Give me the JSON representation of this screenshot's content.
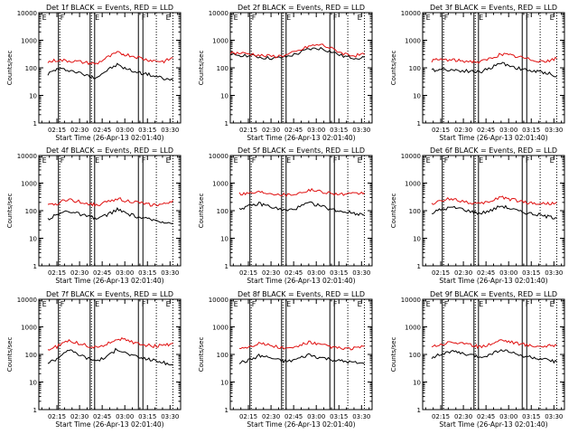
{
  "figure": {
    "x_ticks": [
      "02:15",
      "02:30",
      "02:45",
      "03:00",
      "03:15",
      "03:30"
    ],
    "y_ticks": [
      "1",
      "10",
      "100",
      "1000",
      "10000"
    ],
    "y_label": "Counts/sec",
    "x_label": "Start Time (26-Apr-13 02:01:40)",
    "colors": {
      "events": "#000000",
      "lld": "#e01010"
    }
  },
  "chart_data": [
    {
      "type": "line",
      "title": "Det 1f BLACK = Events, RED = LLD",
      "detector": "1f",
      "xlabel": "Start Time (26-Apr-13 02:01:40)",
      "ylabel": "Counts/sec",
      "xlim": [
        "02:03",
        "03:37"
      ],
      "ylim": [
        1,
        10000
      ],
      "yscale": "log",
      "x": [
        "02:09",
        "02:15",
        "02:22",
        "02:28",
        "02:36",
        "02:41",
        "02:48",
        "02:55",
        "03:01",
        "03:08",
        "03:14",
        "03:20",
        "03:26",
        "03:32"
      ],
      "series": [
        {
          "name": "Events",
          "color": "#000000",
          "values": [
            60,
            90,
            85,
            70,
            50,
            45,
            80,
            130,
            90,
            70,
            60,
            50,
            40,
            35
          ]
        },
        {
          "name": "LLD",
          "color": "#e01010",
          "values": [
            160,
            190,
            180,
            170,
            150,
            140,
            230,
            350,
            300,
            250,
            200,
            180,
            170,
            230
          ]
        }
      ],
      "markers": {
        "solid": [
          "02:16",
          "02:37",
          "02:40",
          "03:09",
          "03:12"
        ],
        "dotted": [
          "02:16",
          "02:37",
          "03:20",
          "03:31"
        ],
        "letters": [
          "E",
          "F",
          "E",
          "F",
          "E"
        ]
      }
    },
    {
      "type": "line",
      "title": "Det 2f BLACK = Events, RED = LLD",
      "detector": "2f",
      "xlabel": "Start Time (26-Apr-13 02:01:40)",
      "ylabel": "Counts/sec",
      "xlim": [
        "02:03",
        "03:37"
      ],
      "ylim": [
        1,
        10000
      ],
      "yscale": "log",
      "x": [
        "02:03",
        "02:10",
        "02:18",
        "02:25",
        "02:33",
        "02:40",
        "02:48",
        "02:55",
        "03:03",
        "03:10",
        "03:18",
        "03:25",
        "03:32"
      ],
      "series": [
        {
          "name": "Events",
          "color": "#000000",
          "values": [
            300,
            290,
            270,
            230,
            220,
            250,
            330,
            480,
            500,
            380,
            260,
            230,
            240
          ]
        },
        {
          "name": "LLD",
          "color": "#e01010",
          "values": [
            350,
            340,
            310,
            270,
            260,
            290,
            400,
            600,
            700,
            500,
            330,
            280,
            300
          ]
        }
      ],
      "markers": {
        "solid": [
          "02:16",
          "02:37",
          "02:40",
          "03:09",
          "03:12"
        ],
        "dotted": [
          "02:16",
          "02:37",
          "03:20",
          "03:31"
        ],
        "letters": [
          "E",
          "F",
          "E",
          "F",
          "E"
        ]
      }
    },
    {
      "type": "line",
      "title": "Det 3f BLACK = Events, RED = LLD",
      "detector": "3f",
      "xlabel": "Start Time (26-Apr-13 02:01:40)",
      "ylabel": "Counts/sec",
      "xlim": [
        "02:03",
        "03:37"
      ],
      "ylim": [
        1,
        10000
      ],
      "yscale": "log",
      "x": [
        "02:09",
        "02:15",
        "02:22",
        "02:28",
        "02:36",
        "02:41",
        "02:48",
        "02:55",
        "03:01",
        "03:08",
        "03:14",
        "03:20",
        "03:26",
        "03:32"
      ],
      "series": [
        {
          "name": "Events",
          "color": "#000000",
          "values": [
            80,
            90,
            85,
            80,
            75,
            70,
            100,
            150,
            120,
            90,
            80,
            70,
            65,
            50
          ]
        },
        {
          "name": "LLD",
          "color": "#e01010",
          "values": [
            180,
            200,
            190,
            180,
            170,
            160,
            220,
            320,
            280,
            240,
            200,
            180,
            170,
            220
          ]
        }
      ],
      "markers": {
        "solid": [
          "02:16",
          "02:37",
          "02:40",
          "03:09",
          "03:12"
        ],
        "dotted": [
          "02:16",
          "02:37",
          "03:20",
          "03:31"
        ],
        "letters": [
          "E",
          "F",
          "E",
          "F",
          "E"
        ]
      }
    },
    {
      "type": "line",
      "title": "Det 4f BLACK = Events, RED = LLD",
      "detector": "4f",
      "xlabel": "Start Time (26-Apr-13 02:01:40)",
      "ylabel": "Counts/sec",
      "xlim": [
        "02:03",
        "03:37"
      ],
      "ylim": [
        1,
        10000
      ],
      "yscale": "log",
      "x": [
        "02:09",
        "02:15",
        "02:22",
        "02:28",
        "02:36",
        "02:41",
        "02:48",
        "02:55",
        "03:01",
        "03:08",
        "03:14",
        "03:20",
        "03:26",
        "03:32"
      ],
      "series": [
        {
          "name": "Events",
          "color": "#000000",
          "values": [
            50,
            70,
            100,
            80,
            60,
            50,
            70,
            110,
            80,
            60,
            50,
            45,
            40,
            35
          ]
        },
        {
          "name": "LLD",
          "color": "#e01010",
          "values": [
            150,
            180,
            260,
            220,
            180,
            160,
            200,
            280,
            230,
            200,
            170,
            160,
            170,
            240
          ]
        }
      ],
      "markers": {
        "solid": [
          "02:16",
          "02:37",
          "02:40",
          "03:09",
          "03:12"
        ],
        "dotted": [
          "02:16",
          "02:37",
          "03:20",
          "03:31"
        ],
        "letters": [
          "E",
          "F",
          "E",
          "F",
          "E"
        ]
      }
    },
    {
      "type": "line",
      "title": "Det 5f BLACK = Events, RED = LLD",
      "detector": "5f",
      "xlabel": "Start Time (26-Apr-13 02:01:40)",
      "ylabel": "Counts/sec",
      "xlim": [
        "02:03",
        "03:37"
      ],
      "ylim": [
        1,
        10000
      ],
      "yscale": "log",
      "x": [
        "02:09",
        "02:15",
        "02:22",
        "02:28",
        "02:36",
        "02:41",
        "02:48",
        "02:55",
        "03:01",
        "03:08",
        "03:14",
        "03:20",
        "03:26",
        "03:32"
      ],
      "series": [
        {
          "name": "Events",
          "color": "#000000",
          "values": [
            120,
            140,
            180,
            150,
            110,
            100,
            130,
            190,
            160,
            120,
            100,
            90,
            80,
            70
          ]
        },
        {
          "name": "LLD",
          "color": "#e01010",
          "values": [
            420,
            430,
            480,
            450,
            400,
            380,
            430,
            560,
            520,
            450,
            400,
            390,
            400,
            450
          ]
        }
      ],
      "markers": {
        "solid": [
          "02:16",
          "02:37",
          "02:40",
          "03:09",
          "03:12"
        ],
        "dotted": [
          "02:16",
          "02:37",
          "03:20",
          "03:31"
        ],
        "letters": [
          "E",
          "F",
          "E",
          "F",
          "E"
        ]
      }
    },
    {
      "type": "line",
      "title": "Det 6f BLACK = Events, RED = LLD",
      "detector": "6f",
      "xlabel": "Start Time (26-Apr-13 02:01:40)",
      "ylabel": "Counts/sec",
      "xlim": [
        "02:03",
        "03:37"
      ],
      "ylim": [
        1,
        10000
      ],
      "yscale": "log",
      "x": [
        "02:09",
        "02:15",
        "02:22",
        "02:28",
        "02:36",
        "02:41",
        "02:48",
        "02:55",
        "03:01",
        "03:08",
        "03:14",
        "03:20",
        "03:26",
        "03:32"
      ],
      "series": [
        {
          "name": "Events",
          "color": "#000000",
          "values": [
            80,
            110,
            130,
            120,
            90,
            80,
            100,
            150,
            120,
            90,
            80,
            70,
            60,
            55
          ]
        },
        {
          "name": "LLD",
          "color": "#e01010",
          "values": [
            180,
            220,
            280,
            230,
            190,
            170,
            220,
            320,
            260,
            220,
            190,
            180,
            180,
            200
          ]
        }
      ],
      "markers": {
        "solid": [
          "02:16",
          "02:37",
          "02:40",
          "03:09",
          "03:12"
        ],
        "dotted": [
          "02:16",
          "02:37",
          "03:20",
          "03:31"
        ],
        "letters": [
          "E",
          "F",
          "E",
          "F",
          "E"
        ]
      }
    },
    {
      "type": "line",
      "title": "Det 7f BLACK = Events, RED = LLD",
      "detector": "7f",
      "xlabel": "Start Time (26-Apr-13 02:01:40)",
      "ylabel": "Counts/sec",
      "xlim": [
        "02:03",
        "03:37"
      ],
      "ylim": [
        1,
        10000
      ],
      "yscale": "log",
      "x": [
        "02:09",
        "02:15",
        "02:22",
        "02:28",
        "02:36",
        "02:41",
        "02:48",
        "02:55",
        "03:01",
        "03:08",
        "03:14",
        "03:20",
        "03:26",
        "03:32"
      ],
      "series": [
        {
          "name": "Events",
          "color": "#000000",
          "values": [
            50,
            70,
            150,
            110,
            70,
            60,
            80,
            160,
            110,
            80,
            70,
            60,
            50,
            40
          ]
        },
        {
          "name": "LLD",
          "color": "#e01010",
          "values": [
            150,
            190,
            320,
            260,
            200,
            180,
            230,
            380,
            320,
            260,
            220,
            200,
            210,
            260
          ]
        }
      ],
      "markers": {
        "solid": [
          "02:16",
          "02:37",
          "02:40",
          "03:09",
          "03:12"
        ],
        "dotted": [
          "02:16",
          "02:37",
          "03:20",
          "03:31"
        ],
        "letters": [
          "E",
          "F",
          "E",
          "F",
          "E"
        ]
      }
    },
    {
      "type": "line",
      "title": "Det 8f BLACK = Events, RED = LLD",
      "detector": "8f",
      "xlabel": "Start Time (26-Apr-13 02:01:40)",
      "ylabel": "Counts/sec",
      "xlim": [
        "02:03",
        "03:37"
      ],
      "ylim": [
        1,
        10000
      ],
      "yscale": "log",
      "x": [
        "02:09",
        "02:15",
        "02:22",
        "02:28",
        "02:36",
        "02:41",
        "02:48",
        "02:55",
        "03:01",
        "03:08",
        "03:14",
        "03:20",
        "03:26",
        "03:32"
      ],
      "series": [
        {
          "name": "Events",
          "color": "#000000",
          "values": [
            50,
            60,
            90,
            80,
            60,
            55,
            70,
            100,
            80,
            70,
            60,
            55,
            50,
            45
          ]
        },
        {
          "name": "LLD",
          "color": "#e01010",
          "values": [
            170,
            190,
            260,
            220,
            180,
            160,
            200,
            280,
            230,
            200,
            170,
            160,
            170,
            200
          ]
        }
      ],
      "markers": {
        "solid": [
          "02:16",
          "02:37",
          "02:40",
          "03:09",
          "03:12"
        ],
        "dotted": [
          "02:16",
          "02:37",
          "03:20",
          "03:31"
        ],
        "letters": [
          "E",
          "F",
          "E",
          "F",
          "E"
        ]
      }
    },
    {
      "type": "line",
      "title": "Det 9f BLACK = Events, RED = LLD",
      "detector": "9f",
      "xlabel": "Start Time (26-Apr-13 02:01:40)",
      "ylabel": "Counts/sec",
      "xlim": [
        "02:03",
        "03:37"
      ],
      "ylim": [
        1,
        10000
      ],
      "yscale": "log",
      "x": [
        "02:09",
        "02:15",
        "02:22",
        "02:28",
        "02:36",
        "02:41",
        "02:48",
        "02:55",
        "03:01",
        "03:08",
        "03:14",
        "03:20",
        "03:26",
        "03:32"
      ],
      "series": [
        {
          "name": "Events",
          "color": "#000000",
          "values": [
            80,
            100,
            130,
            110,
            90,
            80,
            100,
            150,
            120,
            90,
            80,
            70,
            60,
            55
          ]
        },
        {
          "name": "LLD",
          "color": "#e01010",
          "values": [
            200,
            230,
            290,
            250,
            210,
            190,
            240,
            340,
            290,
            240,
            210,
            200,
            200,
            220
          ]
        }
      ],
      "markers": {
        "solid": [
          "02:16",
          "02:37",
          "02:40",
          "03:09",
          "03:12"
        ],
        "dotted": [
          "02:16",
          "02:37",
          "03:20",
          "03:31"
        ],
        "letters": [
          "E",
          "F",
          "E",
          "F",
          "E"
        ]
      }
    }
  ]
}
